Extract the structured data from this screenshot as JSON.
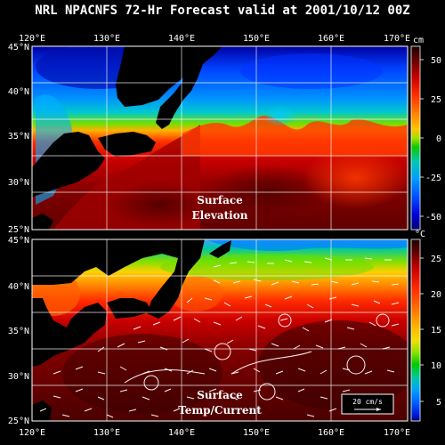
{
  "title": "NRL NPACNFS 72-Hr Forecast valid at 2001/10/12 00Z",
  "lon_labels": [
    "120°E",
    "130°E",
    "140°E",
    "150°E",
    "160°E",
    "170°E"
  ],
  "lat_labels": [
    "45°N",
    "40°N",
    "35°N",
    "30°N",
    "25°N"
  ],
  "top_panel": {
    "label_line1": "Surface",
    "label_line2": "Elevation",
    "colorbar_unit": "cm",
    "colorbar_ticks": [
      "50",
      "25",
      "0",
      "-25",
      "-50"
    ]
  },
  "bottom_panel": {
    "label_line1": "Surface",
    "label_line2": "Temp/Current",
    "colorbar_unit": "°C",
    "colorbar_ticks": [
      "25",
      "20",
      "15",
      "10",
      "5"
    ],
    "scale_label": "20 cm/s"
  },
  "colors": {
    "elev_scale": [
      "#1a0000",
      "#6b0000",
      "#c80000",
      "#ff3000",
      "#ff7a00",
      "#ffc400",
      "#a8e000",
      "#10c800",
      "#00c8b0",
      "#00a0ff",
      "#0050ff",
      "#0000d8",
      "#00006b"
    ],
    "temp_scale": [
      "#1a0000",
      "#6b0000",
      "#c80000",
      "#ff2a00",
      "#ff7000",
      "#ffb400",
      "#f0e000",
      "#80e000",
      "#00c800",
      "#00c8a0",
      "#00a0ff",
      "#0060ff",
      "#0020e0",
      "#000080"
    ],
    "land": "#000000",
    "background": "#000000"
  }
}
